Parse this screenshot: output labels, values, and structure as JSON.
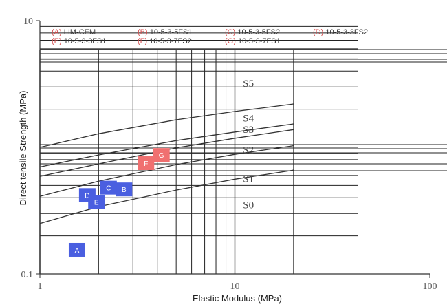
{
  "chart_data": {
    "type": "scatter",
    "xlabel": "Elastic Modulus (MPa)",
    "ylabel": "Direct tensile Strength (MPa)",
    "xscale": "log",
    "yscale": "log",
    "xlim": [
      1,
      100
    ],
    "ylim": [
      0.1,
      10
    ],
    "x_tick_labels": [
      "1",
      "10",
      "100"
    ],
    "y_tick_labels": [
      "0.1",
      "10"
    ],
    "grid": true,
    "legend_position": "top",
    "legend": [
      {
        "code": "(A)",
        "name": "LIM-CEM"
      },
      {
        "code": "(B)",
        "name": "10-5-3-5FS1"
      },
      {
        "code": "(C)",
        "name": "10-5-3-5FS2"
      },
      {
        "code": "(D)",
        "name": "10-5-3-3FS2"
      },
      {
        "code": "(E)",
        "name": "10-5-3-3FS1"
      },
      {
        "code": "(F)",
        "name": "10-5-3-7FS2"
      },
      {
        "code": "(G)",
        "name": "10-5-3-7FS1"
      }
    ],
    "zones": [
      {
        "name": "S5",
        "label_x": 11,
        "label_y": 3.0
      },
      {
        "name": "S4",
        "label_x": 11,
        "label_y": 1.6
      },
      {
        "name": "S3",
        "label_x": 11,
        "label_y": 1.3
      },
      {
        "name": "S2",
        "label_x": 11,
        "label_y": 0.9
      },
      {
        "name": "S1",
        "label_x": 11,
        "label_y": 0.53
      },
      {
        "name": "S0",
        "label_x": 11,
        "label_y": 0.33
      }
    ],
    "boundaries": [
      {
        "x": [
          1,
          2,
          5,
          10,
          20
        ],
        "y": [
          0.25,
          0.34,
          0.46,
          0.56,
          0.66
        ]
      },
      {
        "x": [
          1,
          2,
          5,
          10,
          20
        ],
        "y": [
          0.41,
          0.54,
          0.73,
          0.88,
          1.03
        ]
      },
      {
        "x": [
          1,
          2,
          5,
          10,
          20
        ],
        "y": [
          0.59,
          0.74,
          0.99,
          1.18,
          1.38
        ]
      },
      {
        "x": [
          1,
          2,
          5,
          10,
          20
        ],
        "y": [
          0.7,
          0.87,
          1.13,
          1.32,
          1.53
        ]
      },
      {
        "x": [
          1,
          2,
          5,
          10,
          20
        ],
        "y": [
          1.0,
          1.28,
          1.65,
          1.92,
          2.2
        ]
      }
    ],
    "points": [
      {
        "label": "A",
        "x": 1.55,
        "y": 0.155,
        "color": "#4a5fe0"
      },
      {
        "label": "B",
        "x": 2.7,
        "y": 0.465,
        "color": "#4a5fe0"
      },
      {
        "label": "C",
        "x": 2.25,
        "y": 0.48,
        "color": "#4a5fe0"
      },
      {
        "label": "D",
        "x": 1.75,
        "y": 0.42,
        "color": "#4a5fe0"
      },
      {
        "label": "E",
        "x": 1.95,
        "y": 0.37,
        "color": "#4a5fe0"
      },
      {
        "label": "F",
        "x": 3.5,
        "y": 0.75,
        "color": "#f07070"
      },
      {
        "label": "G",
        "x": 4.2,
        "y": 0.87,
        "color": "#f07070"
      }
    ]
  }
}
